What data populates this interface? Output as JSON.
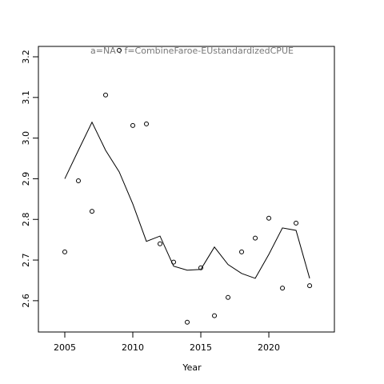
{
  "chart_data": {
    "type": "line",
    "title": "a=NA  :  f=CombineFaroe-EUstandardizedCPUE",
    "x_label": "Year",
    "x": [
      2005,
      2006,
      2007,
      2008,
      2009,
      2010,
      2011,
      2012,
      2013,
      2014,
      2015,
      2016,
      2017,
      2018,
      2019,
      2020,
      2021,
      2022,
      2023
    ],
    "series": [
      {
        "mode": "points",
        "color": "#000000",
        "values": [
          2.72,
          2.895,
          2.82,
          3.106,
          3.216,
          3.031,
          3.035,
          2.74,
          2.695,
          2.547,
          2.681,
          2.563,
          2.608,
          2.72,
          2.754,
          2.803,
          2.631,
          2.791,
          2.637
        ]
      },
      {
        "mode": "line",
        "color": "#000000",
        "values": [
          2.9,
          2.97,
          3.039,
          2.97,
          2.917,
          2.838,
          2.746,
          2.759,
          2.685,
          2.675,
          2.677,
          2.732,
          2.689,
          2.667,
          2.655,
          2.714,
          2.779,
          2.773,
          2.655
        ]
      }
    ],
    "xlim": [
      2003.06,
      2024.82
    ],
    "ylim": [
      2.523,
      3.2256
    ],
    "xticks": [
      2005,
      2010,
      2015,
      2020
    ],
    "yticks": [
      2.6,
      2.7,
      2.8,
      2.9,
      {
        "value": 3.0,
        "label": "3.0"
      },
      3.1,
      3.2
    ]
  }
}
